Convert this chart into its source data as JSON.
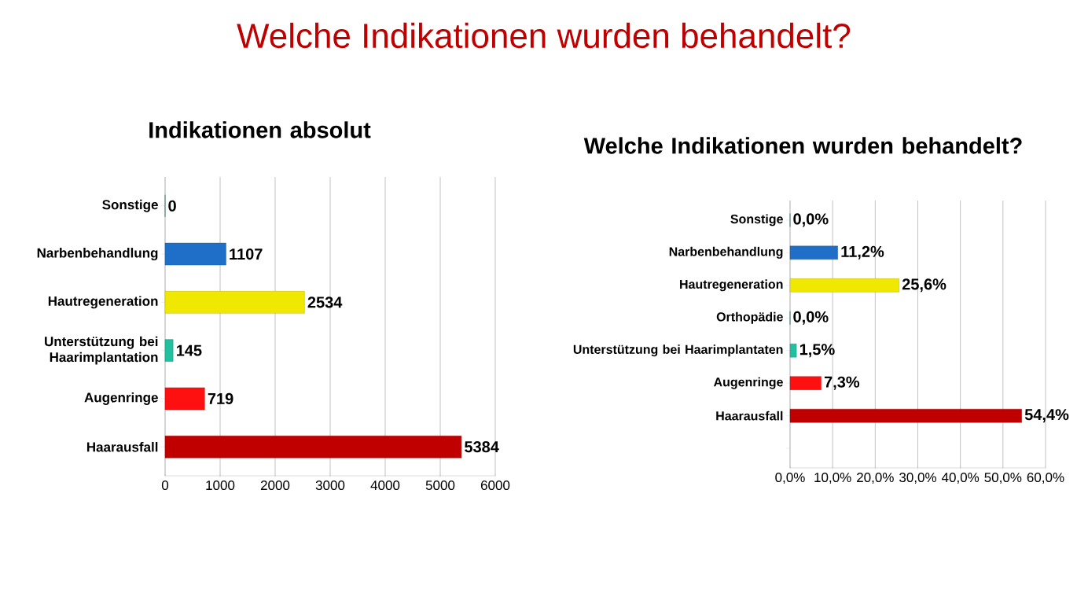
{
  "chart_data": [
    {
      "type": "bar",
      "orientation": "horizontal",
      "title": "Welche Indikationen wurden behandelt?",
      "subtitle": "Indikationen absolut",
      "categories": [
        "Sonstige",
        "Narbenbehandlung",
        "Hautregeneration",
        "Unterstützung bei Haarimplantation",
        "Augenringe",
        "Haarausfall"
      ],
      "values": [
        0,
        1107,
        2534,
        145,
        719,
        5384
      ],
      "colors": [
        "#138a6c",
        "#1f6fc8",
        "#f0e800",
        "#20c0a0",
        "#ff1010",
        "#c00000"
      ],
      "xlim": [
        0,
        6000
      ],
      "xticks": [
        0,
        1000,
        2000,
        3000,
        4000,
        5000,
        6000
      ],
      "grid": "x",
      "data_labels": true
    },
    {
      "type": "bar",
      "orientation": "horizontal",
      "title": "Welche Indikationen wurden behandelt?",
      "categories": [
        "Sonstige",
        "Narbenbehandlung",
        "Hautregeneration",
        "Orthopädie",
        "Unterstützung bei Haarimplantaten",
        "Augenringe",
        "Haarausfall",
        null
      ],
      "values": [
        0.0,
        11.2,
        25.6,
        0.0,
        1.5,
        7.3,
        54.4,
        null
      ],
      "value_labels": [
        "0,0%",
        "11,2%",
        "25,6%",
        "0,0%",
        "1,5%",
        "7,3%",
        "54,4%",
        null
      ],
      "colors": [
        "#138a6c",
        "#1f6fc8",
        "#f0e800",
        "#138a6c",
        "#20c0a0",
        "#ff1010",
        "#c00000",
        "#c00000"
      ],
      "xlim": [
        0,
        60
      ],
      "xticks": [
        {
          "value": 0,
          "label": "0,0%"
        },
        {
          "value": 10,
          "label": "10,0%"
        },
        {
          "value": 20,
          "label": "20,0%"
        },
        {
          "value": 30,
          "label": "30,0%"
        },
        {
          "value": 40,
          "label": "40,0%"
        },
        {
          "value": 50,
          "label": "50,0%"
        },
        {
          "value": 60,
          "label": "60,0%"
        }
      ],
      "grid": "x"
    }
  ]
}
